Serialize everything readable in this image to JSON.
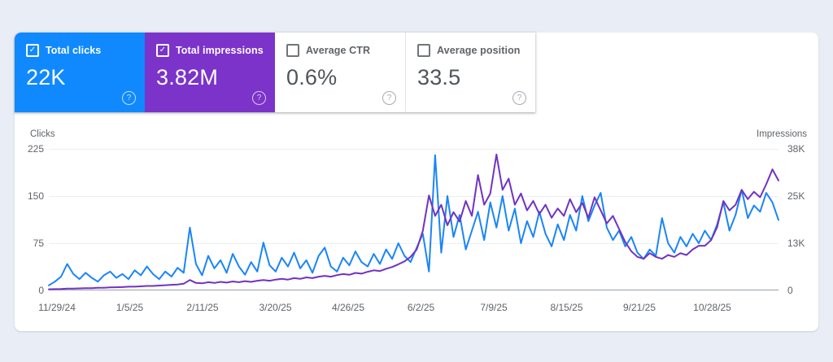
{
  "page": {
    "background": "#e9eef6"
  },
  "cards": [
    {
      "label": "Total clicks",
      "value": "22K",
      "checked": true,
      "bg": "#1089ff",
      "fg": "#ffffff"
    },
    {
      "label": "Total impressions",
      "value": "3.82M",
      "checked": true,
      "bg": "#7b33c9",
      "fg": "#ffffff"
    },
    {
      "label": "Average CTR",
      "value": "0.6%",
      "checked": false,
      "bg": "#ffffff",
      "fg": "#50555c",
      "label_color": "#5f6368"
    },
    {
      "label": "Average position",
      "value": "33.5",
      "checked": false,
      "bg": "#ffffff",
      "fg": "#50555c",
      "label_color": "#5f6368"
    }
  ],
  "help_icon_glyph": "?",
  "chart": {
    "left_axis": {
      "title": "Clicks",
      "ticks": [
        "225",
        "150",
        "75",
        "0"
      ]
    },
    "right_axis": {
      "title": "Impressions",
      "ticks": [
        "38K",
        "25K",
        "13K",
        "0"
      ]
    }
  },
  "chart_data": {
    "type": "line",
    "title": "",
    "grid": true,
    "legend_position": "none",
    "x_tick_labels": [
      "11/29/24",
      "1/5/25",
      "2/11/25",
      "3/20/25",
      "4/26/25",
      "6/2/25",
      "7/9/25",
      "8/15/25",
      "9/21/25",
      "10/28/25"
    ],
    "series": [
      {
        "name": "Total clicks",
        "axis": "left",
        "color": "#1a85f8",
        "ylim": [
          0,
          225
        ],
        "values": [
          8,
          14,
          22,
          42,
          26,
          18,
          28,
          20,
          14,
          24,
          30,
          20,
          26,
          18,
          32,
          24,
          38,
          26,
          18,
          30,
          22,
          36,
          28,
          100,
          42,
          24,
          55,
          35,
          48,
          28,
          58,
          38,
          25,
          45,
          30,
          76,
          40,
          30,
          52,
          38,
          60,
          35,
          48,
          28,
          55,
          68,
          38,
          30,
          52,
          40,
          62,
          45,
          38,
          58,
          42,
          65,
          50,
          75,
          55,
          45,
          68,
          90,
          30,
          215,
          60,
          150,
          85,
          120,
          65,
          95,
          125,
          80,
          140,
          100,
          150,
          95,
          130,
          75,
          110,
          85,
          125,
          90,
          70,
          105,
          80,
          120,
          95,
          150,
          110,
          135,
          155,
          100,
          80,
          95,
          70,
          85,
          60,
          50,
          65,
          55,
          115,
          75,
          60,
          85,
          70,
          90,
          75,
          95,
          80,
          105,
          140,
          95,
          120,
          160,
          115,
          135,
          125,
          155,
          140,
          112
        ]
      },
      {
        "name": "Total impressions",
        "axis": "right",
        "color": "#7132c2",
        "ylim": [
          0,
          38
        ],
        "unit": "K",
        "values": [
          0.3,
          0.35,
          0.4,
          0.5,
          0.5,
          0.55,
          0.6,
          0.6,
          0.7,
          0.7,
          0.8,
          0.85,
          0.9,
          1.0,
          1.0,
          1.1,
          1.2,
          1.2,
          1.3,
          1.4,
          1.5,
          1.6,
          1.8,
          2.8,
          2.0,
          1.9,
          2.2,
          2.0,
          2.3,
          2.1,
          2.4,
          2.2,
          2.5,
          2.3,
          2.6,
          2.8,
          2.6,
          2.9,
          3.1,
          2.9,
          3.3,
          3.1,
          3.5,
          3.3,
          3.7,
          3.9,
          3.7,
          4.1,
          4.4,
          4.2,
          4.7,
          4.5,
          5.0,
          5.4,
          5.2,
          5.8,
          6.3,
          7.0,
          7.8,
          9.0,
          11.0,
          16.0,
          25.5,
          20.0,
          23.0,
          17.5,
          21.0,
          18.5,
          24.0,
          20.0,
          31.0,
          23.0,
          26.0,
          36.5,
          27.0,
          30.0,
          23.0,
          26.0,
          21.5,
          24.0,
          20.5,
          23.0,
          19.5,
          22.0,
          20.0,
          24.5,
          21.0,
          23.5,
          19.5,
          25.0,
          21.5,
          18.0,
          20.0,
          16.5,
          13.0,
          10.5,
          9.0,
          8.5,
          10.0,
          9.0,
          8.5,
          9.5,
          9.0,
          10.0,
          9.5,
          11.0,
          12.0,
          12.0,
          13.5,
          17.0,
          24.0,
          21.5,
          23.0,
          27.0,
          24.5,
          26.5,
          25.0,
          28.5,
          32.5,
          29.5
        ]
      }
    ]
  }
}
